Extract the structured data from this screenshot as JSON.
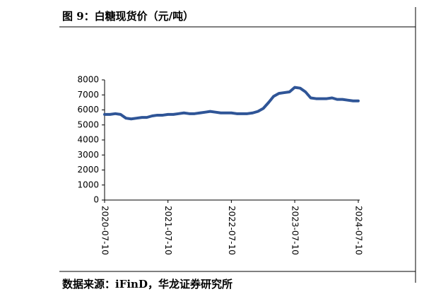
{
  "chart_data": {
    "type": "line",
    "title": "图 9：白糖现货价（元/吨）",
    "source": "数据来源：iFinD，华龙证券研究所",
    "x": [
      "2020-07-10",
      "2020-08-10",
      "2020-09-10",
      "2020-10-10",
      "2020-11-10",
      "2020-12-10",
      "2021-01-10",
      "2021-02-10",
      "2021-03-10",
      "2021-04-10",
      "2021-05-10",
      "2021-06-10",
      "2021-07-10",
      "2021-08-10",
      "2021-09-10",
      "2021-10-10",
      "2021-11-10",
      "2021-12-10",
      "2022-01-10",
      "2022-02-10",
      "2022-03-10",
      "2022-04-10",
      "2022-05-10",
      "2022-06-10",
      "2022-07-10",
      "2022-08-10",
      "2022-09-10",
      "2022-10-10",
      "2022-11-10",
      "2022-12-10",
      "2023-01-10",
      "2023-02-10",
      "2023-03-10",
      "2023-04-10",
      "2023-05-10",
      "2023-06-10",
      "2023-07-10",
      "2023-08-10",
      "2023-09-10",
      "2023-10-10",
      "2023-11-10",
      "2023-12-10",
      "2024-01-10",
      "2024-02-10",
      "2024-03-10",
      "2024-04-10",
      "2024-05-10",
      "2024-06-10",
      "2024-07-10"
    ],
    "series": [
      {
        "name": "白糖现货价",
        "color": "#2f5597",
        "values": [
          5700,
          5700,
          5750,
          5700,
          5450,
          5400,
          5450,
          5500,
          5500,
          5600,
          5650,
          5650,
          5700,
          5700,
          5750,
          5800,
          5750,
          5750,
          5800,
          5850,
          5900,
          5850,
          5800,
          5800,
          5800,
          5750,
          5750,
          5750,
          5800,
          5900,
          6100,
          6500,
          6900,
          7100,
          7150,
          7200,
          7500,
          7450,
          7200,
          6800,
          6750,
          6750,
          6750,
          6800,
          6700,
          6700,
          6650,
          6600,
          6600
        ]
      }
    ],
    "xlim": [
      "2020-07-10",
      "2024-07-10"
    ],
    "xticks": [
      "2020-07-10",
      "2021-07-10",
      "2022-07-10",
      "2023-07-10",
      "2024-07-10"
    ],
    "ylim": [
      0,
      8000
    ],
    "yticks": [
      0,
      1000,
      2000,
      3000,
      4000,
      5000,
      6000,
      7000,
      8000
    ]
  }
}
